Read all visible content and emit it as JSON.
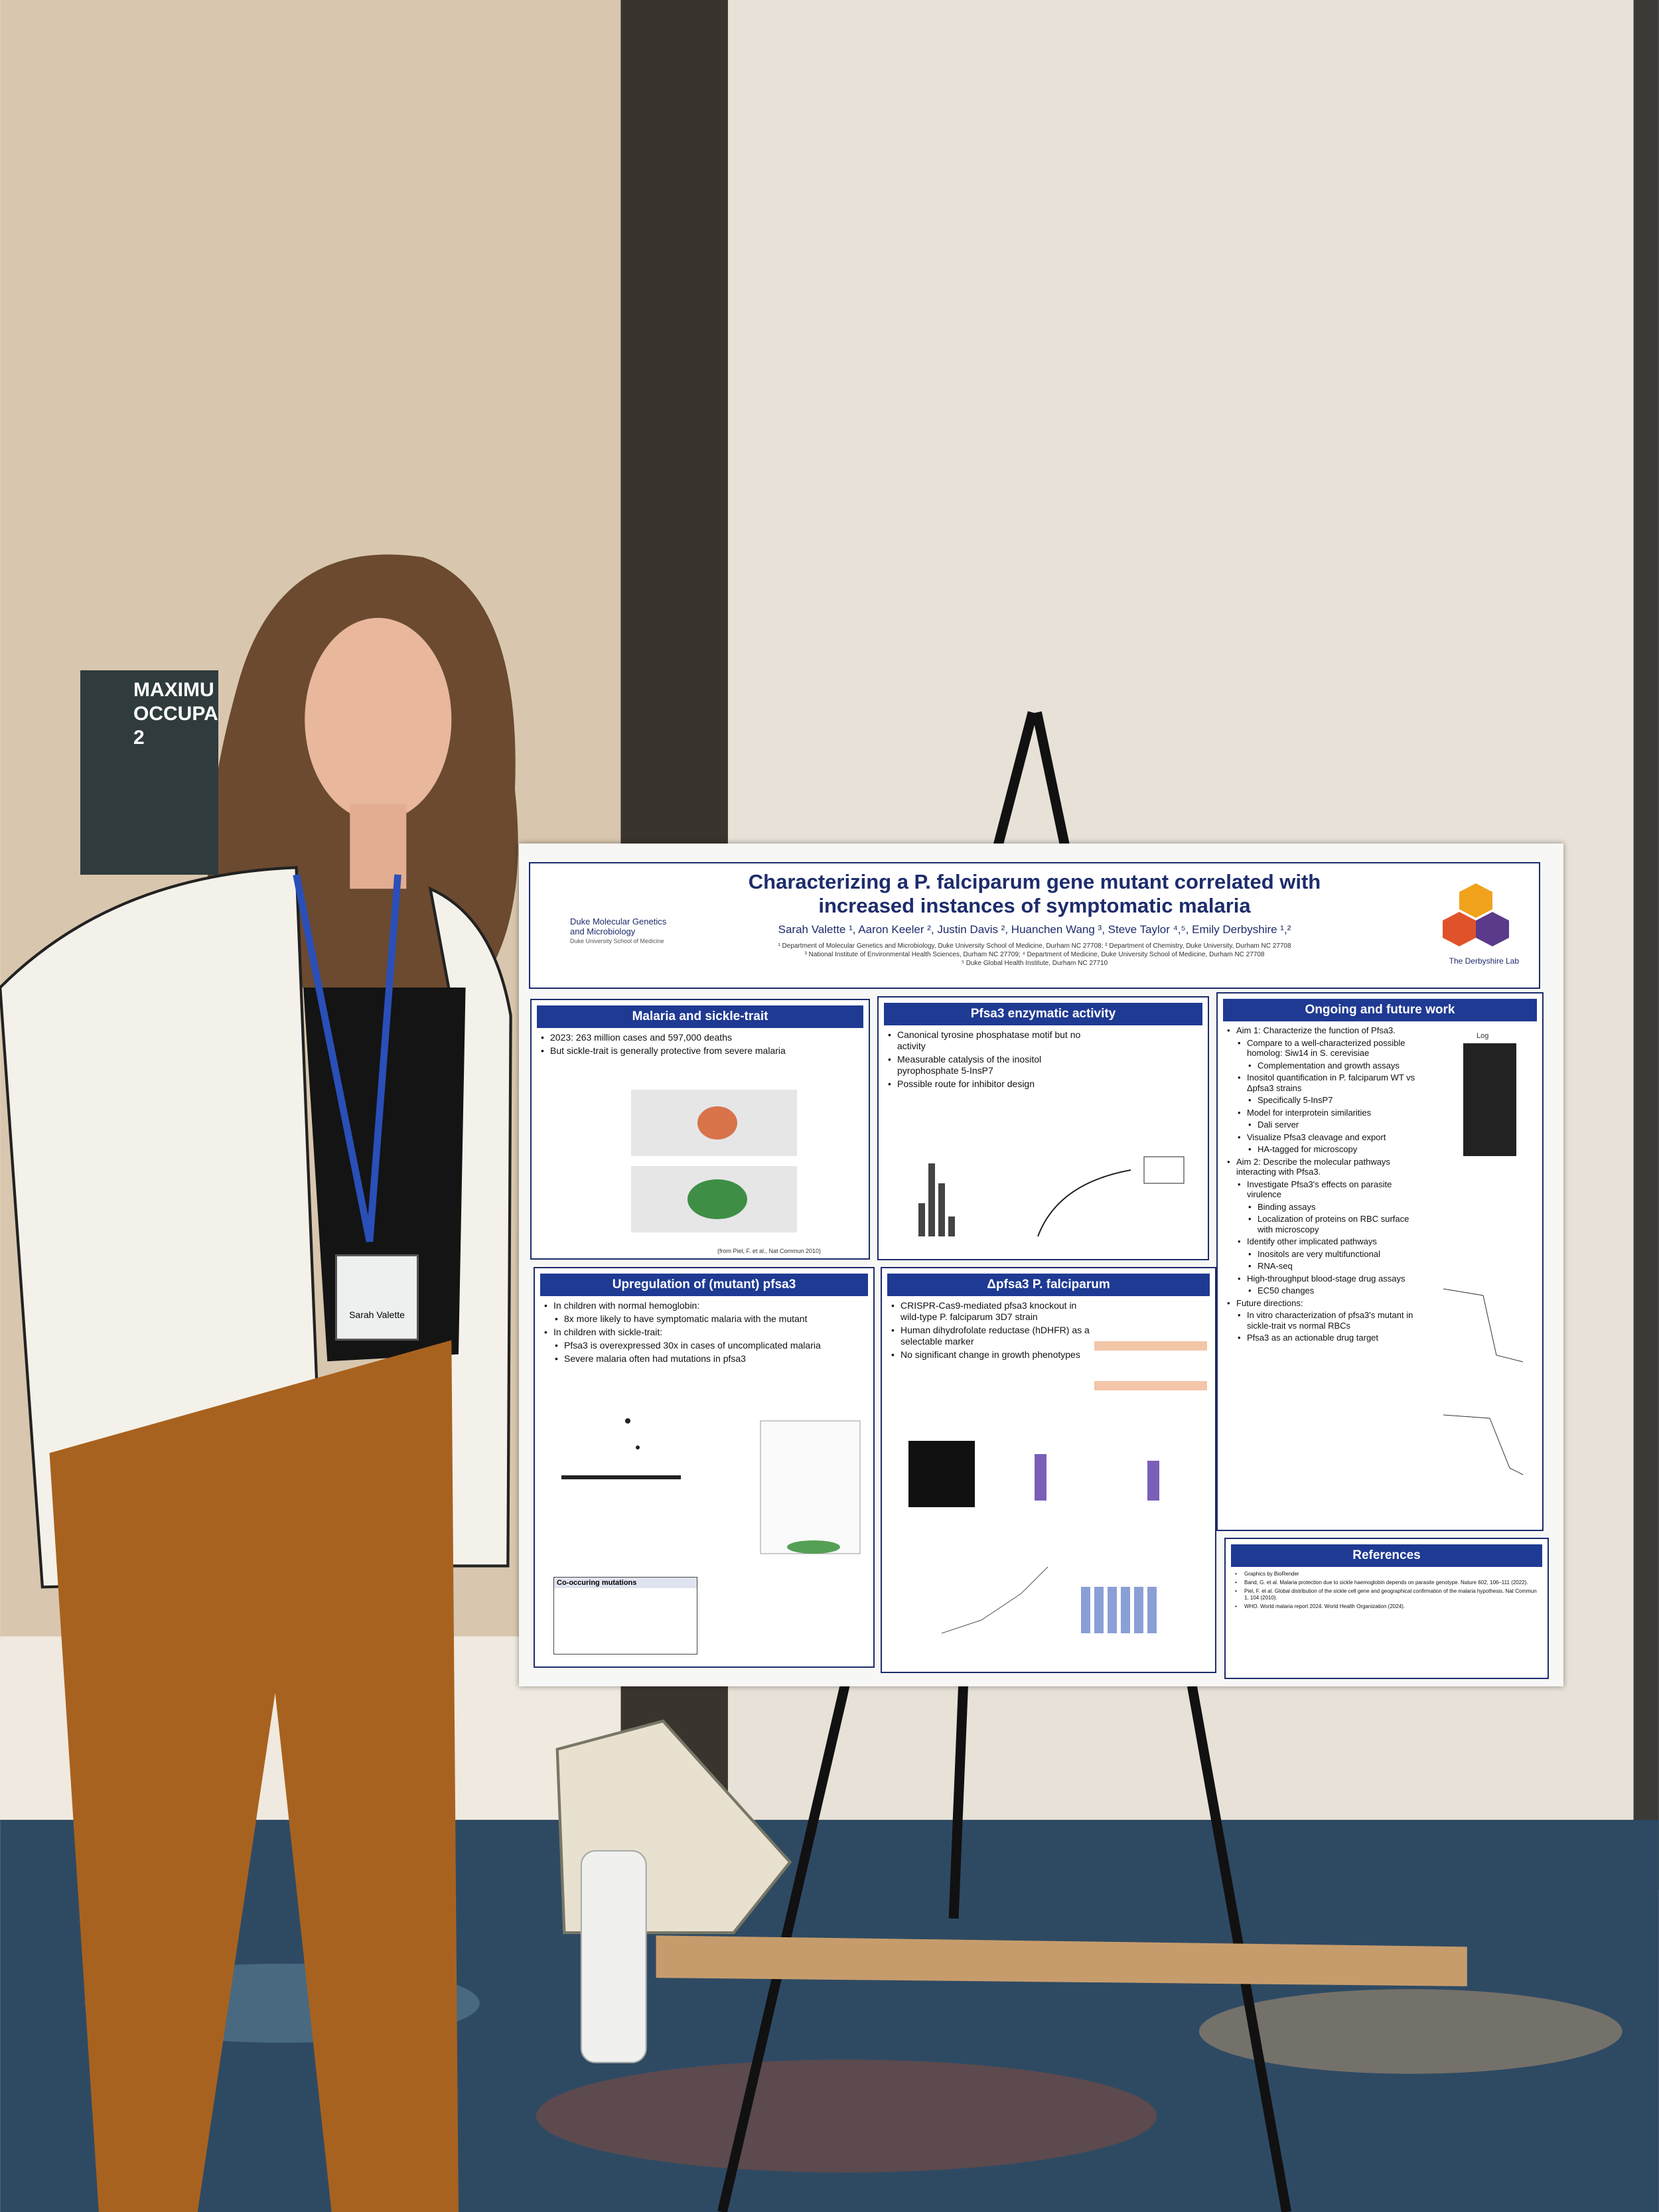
{
  "sign": {
    "lines": [
      "MAXIMU",
      "OCCUPA",
      "2"
    ]
  },
  "badge": {
    "name": "Sarah Valette"
  },
  "poster": {
    "title_lines": [
      "Characterizing a P. falciparum gene mutant correlated with",
      "increased instances of symptomatic malaria"
    ],
    "authors": "Sarah Valette ¹, Aaron Keeler ², Justin Davis ², Huanchen Wang ³, Steve Taylor ⁴,⁵, Emily Derbyshire ¹,²",
    "affiliations": [
      "¹ Department of Molecular Genetics and Microbiology, Duke University School of Medicine, Durham NC 27708; ² Department of Chemistry, Duke University, Durham NC 27708",
      "³ National Institute of Environmental Health Sciences, Durham NC 27709; ⁴ Department of Medicine, Duke University School of Medicine, Durham NC 27708",
      "⁵ Duke Global Health Institute, Durham NC 27710"
    ],
    "logo_left": [
      "Duke Molecular Genetics",
      "and Microbiology",
      "Duke University School of Medicine"
    ],
    "logo_right": "The Derbyshire Lab",
    "panels": [
      {
        "heading": "Malaria and sickle-trait",
        "items": [
          {
            "text": "2023: 263 million cases and 597,000 deaths"
          },
          {
            "text": "But sickle-trait is generally protective from severe malaria"
          }
        ],
        "caption": "(from Piel, F. et al., Nat Commun 2010)"
      },
      {
        "heading": "Pfsa3 enzymatic activity",
        "items": [
          {
            "text": "Canonical tyrosine phosphatase motif but no activity"
          },
          {
            "text": "Measurable catalysis of the inositol pyrophosphate 5-InsP7"
          },
          {
            "text": "Possible route for inhibitor design"
          }
        ]
      },
      {
        "heading": "Ongoing and future work",
        "items": [
          {
            "text": "Aim 1: Characterize the function of Pfsa3.",
            "sub": [
              {
                "text": "Compare to a well-characterized possible homolog: Siw14 in S. cerevisiae",
                "sub": [
                  {
                    "text": "Complementation and growth assays"
                  }
                ]
              },
              {
                "text": "Inositol quantification in P. falciparum WT vs Δpfsa3 strains",
                "sub": [
                  {
                    "text": "Specifically 5-InsP7"
                  }
                ]
              },
              {
                "text": "Model for interprotein similarities",
                "sub": [
                  {
                    "text": "Dali server"
                  }
                ]
              },
              {
                "text": "Visualize Pfsa3 cleavage and export",
                "sub": [
                  {
                    "text": "HA-tagged for microscopy"
                  }
                ]
              }
            ]
          },
          {
            "text": "Aim 2: Describe the molecular pathways interacting with Pfsa3.",
            "sub": [
              {
                "text": "Investigate Pfsa3's effects on parasite virulence",
                "sub": [
                  {
                    "text": "Binding assays"
                  },
                  {
                    "text": "Localization of proteins on RBC surface with microscopy"
                  }
                ]
              },
              {
                "text": "Identify other implicated pathways",
                "sub": [
                  {
                    "text": "Inositols are very multifunctional"
                  },
                  {
                    "text": "RNA-seq"
                  }
                ]
              },
              {
                "text": "High-throughput blood-stage drug assays",
                "sub": [
                  {
                    "text": "EC50 changes"
                  }
                ]
              }
            ]
          },
          {
            "text": "Future directions:",
            "sub": [
              {
                "text": "In vitro characterization of pfsa3's mutant in sickle-trait vs normal RBCs"
              },
              {
                "text": "Pfsa3 as an actionable drug target"
              }
            ]
          }
        ],
        "caption": "Log"
      },
      {
        "heading": "Upregulation of (mutant) pfsa3",
        "items": [
          {
            "text": "In children with normal hemoglobin:",
            "sub": [
              {
                "text": "8x more likely to have symptomatic malaria with the mutant"
              }
            ]
          },
          {
            "text": "In children with sickle-trait:",
            "sub": [
              {
                "text": "Pfsa3 is overexpressed 30x in cases of uncomplicated malaria"
              },
              {
                "text": "Severe malaria often had mutations in pfsa3"
              }
            ]
          }
        ],
        "caption": "Co-occuring mutations"
      },
      {
        "heading": "Δpfsa3 P. falciparum",
        "items": [
          {
            "text": "CRISPR-Cas9-mediated pfsa3 knockout in wild-type P. falciparum 3D7 strain"
          },
          {
            "text": "Human dihydrofolate reductase (hDHFR) as a selectable marker"
          },
          {
            "text": "No significant change in growth phenotypes"
          }
        ]
      },
      {
        "heading": "References",
        "items": [
          {
            "text": "Graphics by BioRender"
          },
          {
            "text": "Band, G. et al. Malaria protection due to sickle haemoglobin depends on parasite genotype. Nature 602, 106–111 (2022)."
          },
          {
            "text": "Piel, F. et al. Global distribution of the sickle cell gene and geographical confirmation of the malaria hypothesis. Nat Commun 1, 104 (2010)."
          },
          {
            "text": "WHO. World malaria report 2024. World Health Organization (2024)."
          }
        ]
      }
    ]
  }
}
